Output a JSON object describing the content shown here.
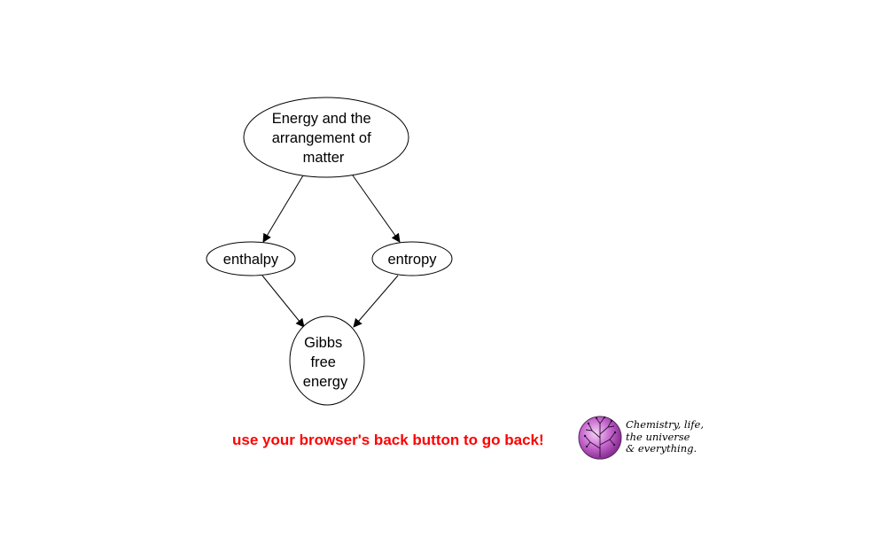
{
  "diagram": {
    "nodes": {
      "root": {
        "lines": [
          "Energy and the",
          "arrangement of",
          "matter"
        ]
      },
      "enthalpy": {
        "lines": [
          "enthalpy"
        ]
      },
      "entropy": {
        "lines": [
          "entropy"
        ]
      },
      "gibbs": {
        "lines": [
          "Gibbs",
          "free",
          "energy"
        ]
      }
    },
    "edges": [
      {
        "from": "root",
        "to": "enthalpy"
      },
      {
        "from": "root",
        "to": "entropy"
      },
      {
        "from": "enthalpy",
        "to": "gibbs"
      },
      {
        "from": "entropy",
        "to": "gibbs"
      }
    ]
  },
  "footer": {
    "back_note": "use your browser's back button to go back!",
    "back_note_color": "#ff0000"
  },
  "logo": {
    "lines": [
      "Chemistry, life,",
      "the universe",
      "& everything."
    ],
    "icon": "tree-of-life-globe-icon",
    "globe_color": "#c060c8"
  }
}
